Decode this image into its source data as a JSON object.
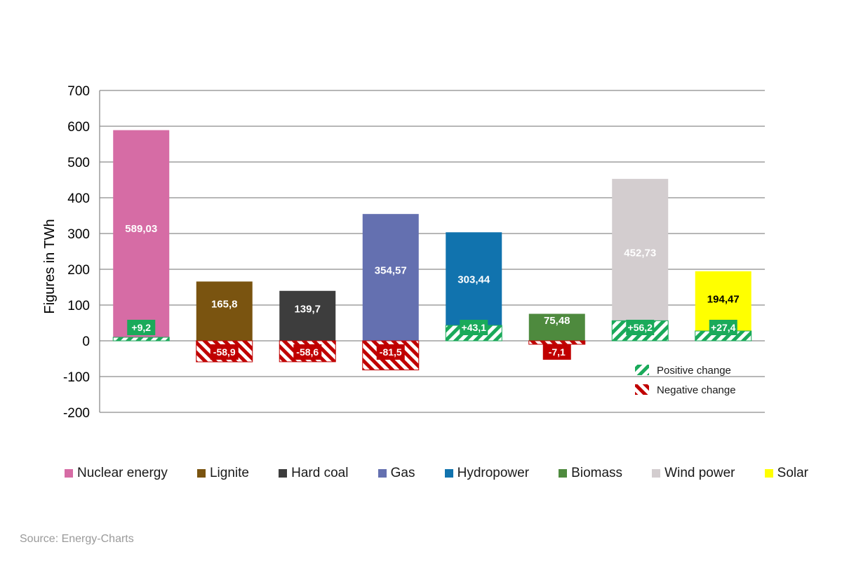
{
  "chart_data": {
    "type": "bar",
    "title": "",
    "ylabel": "Figures in TWh",
    "ylim": [
      -200,
      700
    ],
    "yticks": [
      700,
      600,
      500,
      400,
      300,
      200,
      100,
      0,
      -100,
      -200
    ],
    "grid": true,
    "categories": [
      "Nuclear energy",
      "Lignite",
      "Hard coal",
      "Gas",
      "Hydropower",
      "Biomass",
      "Wind power",
      "Solar"
    ],
    "values": [
      589.03,
      165.8,
      139.7,
      354.57,
      303.44,
      75.48,
      452.73,
      194.47
    ],
    "value_labels": [
      "589,03",
      "165,8",
      "139,7",
      "354,57",
      "303,44",
      "75,48",
      "452,73",
      "194,47"
    ],
    "colors": [
      "#D66CA5",
      "#7A5410",
      "#3D3D3D",
      "#6470B0",
      "#1173AE",
      "#4E8A3E",
      "#D3CDCF",
      "#FFFF00"
    ],
    "value_label_colors": [
      "#ffffff",
      "#ffffff",
      "#ffffff",
      "#ffffff",
      "#ffffff",
      "#ffffff",
      "#ffffff",
      "#000000"
    ],
    "changes": [
      9.2,
      -58.9,
      -58.6,
      -81.5,
      43.1,
      -7.1,
      56.2,
      27.4
    ],
    "change_labels": [
      "+9,2",
      "-58,9",
      "-58,6",
      "-81,5",
      "+43,1",
      "-7,1",
      "+56,2",
      "+27,4"
    ],
    "change_legend": [
      {
        "label": "Positive change",
        "color": "#1AAA5A"
      },
      {
        "label": "Negative change",
        "color": "#C00000"
      }
    ]
  },
  "source": "Source: Energy-Charts"
}
